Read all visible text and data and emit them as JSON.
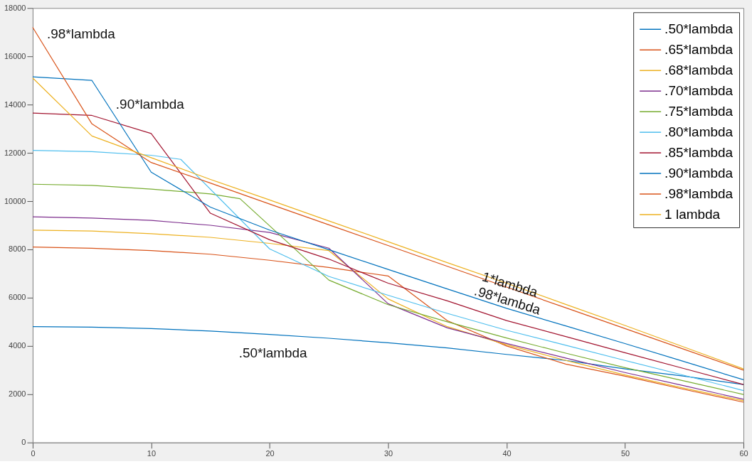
{
  "chart_data": {
    "type": "line",
    "xlim": [
      0,
      60
    ],
    "ylim": [
      0,
      18000
    ],
    "xticks": [
      0,
      10,
      20,
      30,
      40,
      50,
      60
    ],
    "yticks": [
      0,
      2000,
      4000,
      6000,
      8000,
      10000,
      12000,
      14000,
      16000,
      18000
    ],
    "grid": false,
    "legend": "top right",
    "line_style": "solid",
    "marker": "none",
    "series": [
      {
        "name": ".50*lambda",
        "color": "#0072bd",
        "x": [
          0,
          5,
          10,
          15,
          20,
          25,
          30,
          35,
          40,
          45,
          50,
          55,
          60
        ],
        "values": [
          4800,
          4780,
          4720,
          4620,
          4480,
          4320,
          4130,
          3920,
          3650,
          3400,
          3050,
          2750,
          2400
        ]
      },
      {
        "name": ".65*lambda",
        "color": "#d95319",
        "x": [
          0,
          5,
          10,
          15,
          20,
          25,
          30,
          35,
          40,
          45,
          50,
          55,
          60
        ],
        "values": [
          8100,
          8050,
          7950,
          7800,
          7550,
          7250,
          6900,
          5050,
          4000,
          3250,
          2750,
          2200,
          1670
        ]
      },
      {
        "name": ".68*lambda",
        "color": "#edb120",
        "x": [
          0,
          5,
          10,
          15,
          20,
          25,
          30,
          35,
          40,
          45,
          50,
          55,
          60
        ],
        "values": [
          8800,
          8760,
          8650,
          8500,
          8250,
          7950,
          5950,
          4800,
          4050,
          3400,
          2800,
          2250,
          1730
        ]
      },
      {
        "name": ".70*lambda",
        "color": "#7e2f8e",
        "x": [
          0,
          5,
          10,
          15,
          20,
          25,
          30,
          35,
          40,
          45,
          50,
          55,
          60
        ],
        "values": [
          9350,
          9300,
          9200,
          9000,
          8700,
          8050,
          5750,
          4750,
          4100,
          3500,
          2900,
          2350,
          1790
        ]
      },
      {
        "name": ".75*lambda",
        "color": "#77ac30",
        "x": [
          0,
          5,
          10,
          15,
          17.5,
          25,
          30,
          35,
          40,
          45,
          50,
          55,
          60
        ],
        "values": [
          10700,
          10650,
          10500,
          10300,
          10100,
          6730,
          5710,
          5000,
          4330,
          3700,
          3100,
          2550,
          1990
        ]
      },
      {
        "name": ".80*lambda",
        "color": "#4dbeee",
        "x": [
          0,
          5,
          10,
          12.5,
          20,
          25,
          30,
          35,
          40,
          45,
          50,
          55,
          60
        ],
        "values": [
          12100,
          12050,
          11900,
          11730,
          8020,
          6880,
          6100,
          5350,
          4650,
          4030,
          3400,
          2780,
          2150
        ]
      },
      {
        "name": ".85*lambda",
        "color": "#a2142f",
        "x": [
          0,
          5,
          10,
          15,
          20,
          25,
          30,
          35,
          40,
          45,
          50,
          55,
          60
        ],
        "values": [
          13650,
          13550,
          12800,
          9500,
          8400,
          7600,
          6600,
          5870,
          5050,
          4390,
          3720,
          3060,
          2400
        ]
      },
      {
        "name": ".90*lambda",
        "color": "#0072bd",
        "x": [
          0,
          5,
          10,
          15,
          20,
          25,
          30,
          35,
          40,
          45,
          50,
          55,
          60
        ],
        "values": [
          15150,
          15000,
          11200,
          9750,
          8800,
          7990,
          7170,
          6360,
          5560,
          4830,
          4100,
          3350,
          2600
        ]
      },
      {
        "name": ".98*lambda",
        "color": "#d95319",
        "x": [
          0,
          5,
          10,
          15,
          20,
          25,
          30,
          35,
          40,
          45,
          50,
          55,
          60
        ],
        "values": [
          17200,
          13200,
          11600,
          10750,
          9880,
          9020,
          8160,
          7300,
          6440,
          5580,
          4720,
          3860,
          3000
        ]
      },
      {
        "name": "1 lambda",
        "color": "#edb120",
        "x": [
          0,
          5,
          10,
          15,
          20,
          25,
          30,
          35,
          40,
          45,
          50,
          55,
          60
        ],
        "values": [
          15100,
          12700,
          11800,
          10900,
          10050,
          9180,
          8320,
          7450,
          6600,
          5720,
          4850,
          3950,
          3050
        ]
      }
    ],
    "annotations": [
      ".98*lambda",
      ".90*lambda",
      ".50*lambda",
      "1*lambda",
      ".98*lambda"
    ]
  }
}
